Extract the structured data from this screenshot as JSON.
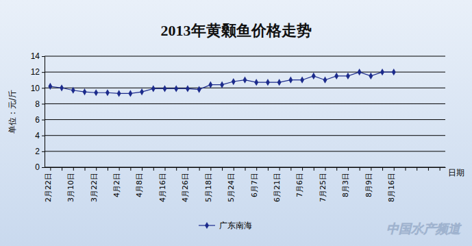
{
  "chart_data": {
    "type": "line",
    "title": "2013年黄颡鱼价格走势",
    "y_label": "单位：元/斤",
    "x_label": "日期",
    "categories": [
      "2月22日",
      null,
      "3月10日",
      null,
      "3月22日",
      null,
      "4月2日",
      null,
      "4月8日",
      null,
      "4月16日",
      null,
      "4月26日",
      null,
      "5月18日",
      null,
      "5月24日",
      null,
      "6月7日",
      null,
      "6月21日",
      null,
      "7月6日",
      null,
      "7月25日",
      null,
      "8月3日",
      null,
      "8月9日",
      null,
      "8月16日",
      null,
      null,
      null,
      null
    ],
    "series": [
      {
        "name": "广东南海",
        "color": "#1c2b8c",
        "marker": "diamond",
        "line_style": "solid",
        "values": [
          10.2,
          10.0,
          9.7,
          9.5,
          9.4,
          9.4,
          9.3,
          9.3,
          9.5,
          9.9,
          9.9,
          9.9,
          9.9,
          9.8,
          10.4,
          10.4,
          10.8,
          11.0,
          10.7,
          10.7,
          10.7,
          11.0,
          11.0,
          11.5,
          11.0,
          11.5,
          11.5,
          12.0,
          11.5,
          12.0,
          12.0,
          null,
          null,
          null,
          null
        ]
      }
    ],
    "ylim": [
      0,
      14
    ],
    "yticks": [
      0,
      2,
      4,
      6,
      8,
      10,
      12,
      14
    ],
    "grid": true,
    "legend": "bottom",
    "annotations": [
      "中国水产频道"
    ]
  }
}
